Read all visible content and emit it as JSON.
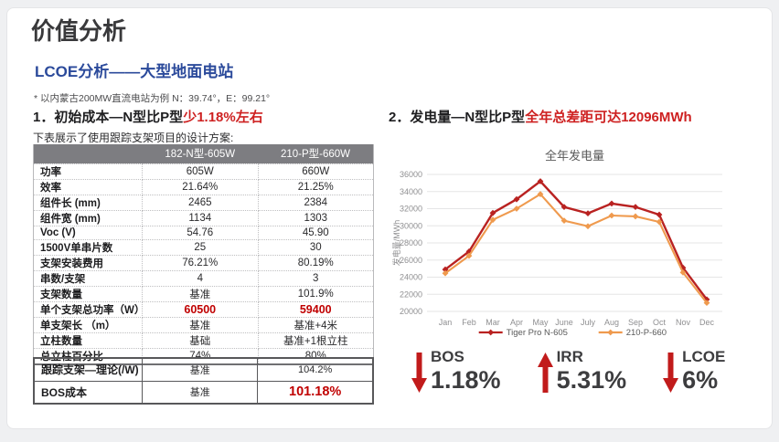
{
  "page": {
    "title": "价值分析",
    "subtitle": "LCOE分析——大型地面电站",
    "note": "* 以内蒙古200MW直流电站为例 N：39.74°，E：99.21°"
  },
  "left": {
    "heading_prefix": "1．初始成本—N型比P型",
    "heading_highlight": "少1.18%左右",
    "table_caption": "下表展示了使用跟踪支架项目的设计方案:",
    "spec_table": {
      "columns": [
        "",
        "182-N型-605W",
        "210-P型-660W"
      ],
      "rows": [
        {
          "label": "功率",
          "n": "605W",
          "p": "660W",
          "red": false
        },
        {
          "label": "效率",
          "n": "21.64%",
          "p": "21.25%",
          "red": false
        },
        {
          "label": "组件长 (mm)",
          "n": "2465",
          "p": "2384",
          "red": false
        },
        {
          "label": "组件宽 (mm)",
          "n": "1134",
          "p": "1303",
          "red": false
        },
        {
          "label": "Voc (V)",
          "n": "54.76",
          "p": "45.90",
          "red": false
        },
        {
          "label": "1500V单串片数",
          "n": "25",
          "p": "30",
          "red": false
        },
        {
          "label": "支架安装费用",
          "n": "76.21%",
          "p": "80.19%",
          "red": false
        },
        {
          "label": "串数/支架",
          "n": "4",
          "p": "3",
          "red": false
        },
        {
          "label": "支架数量",
          "n": "基准",
          "p": "101.9%",
          "red": false
        },
        {
          "label": "单个支架总功率（W）",
          "n": "60500",
          "p": "59400",
          "red": true
        },
        {
          "label": "单支架长 （m）",
          "n": "基准",
          "p": "基准+4米",
          "red": false
        },
        {
          "label": "立柱数量",
          "n": "基础",
          "p": "基准+1根立柱",
          "red": false
        },
        {
          "label": "总立柱百分比",
          "n": "74%",
          "p": "80%",
          "red": false
        }
      ]
    },
    "cost_table": {
      "rows": [
        {
          "label": "跟踪支架—理论(/W)",
          "n": "基准",
          "p": "104.2%",
          "red": false
        },
        {
          "label": "BOS成本",
          "n": "基准",
          "p": "101.18%",
          "red": true
        }
      ]
    }
  },
  "right": {
    "heading_prefix": "2．发电量—N型比P型",
    "heading_highlight": "全年总差距可达12096MWh",
    "metrics": [
      {
        "label": "BOS",
        "value": "1.18%",
        "direction": "down"
      },
      {
        "label": "IRR",
        "value": "5.31%",
        "direction": "up"
      },
      {
        "label": "LCOE",
        "value": "6%",
        "direction": "down"
      }
    ]
  },
  "chart_data": {
    "type": "line",
    "title": "全年发电量",
    "ylabel": "发电量/MWh",
    "categories": [
      "Jan",
      "Feb",
      "Mar",
      "Apr",
      "May",
      "June",
      "July",
      "Aug",
      "Sep",
      "Oct",
      "Nov",
      "Dec"
    ],
    "series": [
      {
        "name": "Tiger Pro N-605",
        "color": "#b92221",
        "values": [
          24900,
          27000,
          31500,
          33100,
          35200,
          32200,
          31450,
          32600,
          32200,
          31300,
          25100,
          21400
        ]
      },
      {
        "name": "210-P-660",
        "color": "#ef9a4e",
        "values": [
          24450,
          26500,
          30700,
          32000,
          33700,
          30600,
          29950,
          31200,
          31100,
          30450,
          24550,
          21000
        ]
      }
    ],
    "ylim": [
      20000,
      36000
    ],
    "ytick_step": 2000,
    "grid": true,
    "legend_position": "bottom"
  },
  "colors": {
    "accent_red": "#ce2121",
    "value_red": "#c00000",
    "heading_blue": "#2b4a9b",
    "table_header_bg": "#7d7d81",
    "grid_line": "#e5e5e6",
    "tick_text": "#8f8f91",
    "arrow_red": "#c11b1b"
  }
}
